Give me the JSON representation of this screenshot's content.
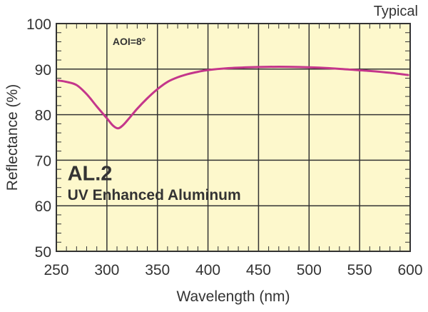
{
  "chart_data": {
    "type": "line",
    "corner_note": "Typical",
    "xlabel": "Wavelength (nm)",
    "ylabel": "Reflectance (%)",
    "xlim": [
      250,
      600
    ],
    "ylim": [
      50,
      100
    ],
    "x_major_ticks": [
      250,
      300,
      350,
      400,
      450,
      500,
      550,
      600
    ],
    "y_major_ticks": [
      50,
      60,
      70,
      80,
      90,
      100
    ],
    "x_minor_step": 10,
    "y_minor_step": 2,
    "grid": true,
    "annotations": {
      "aoi": "AOI=8°",
      "product_code": "AL.2",
      "product_name": "UV Enhanced Aluminum"
    },
    "colors": {
      "plot_background": "#fdf8cc",
      "grid": "#333333",
      "series": "#c4368b"
    },
    "series": [
      {
        "x": [
          252,
          260,
          270,
          280,
          290,
          300,
          306,
          311,
          316,
          322,
          330,
          340,
          350,
          360,
          370,
          380,
          390,
          400,
          420,
          440,
          460,
          480,
          500,
          520,
          540,
          560,
          580,
          598
        ],
        "y": [
          87.5,
          87.2,
          86.5,
          84.5,
          81.8,
          79.2,
          77.6,
          77.0,
          77.7,
          79.2,
          81.3,
          83.6,
          85.6,
          87.2,
          88.2,
          88.9,
          89.4,
          89.8,
          90.2,
          90.4,
          90.5,
          90.5,
          90.4,
          90.2,
          89.9,
          89.6,
          89.2,
          88.7
        ]
      }
    ]
  }
}
